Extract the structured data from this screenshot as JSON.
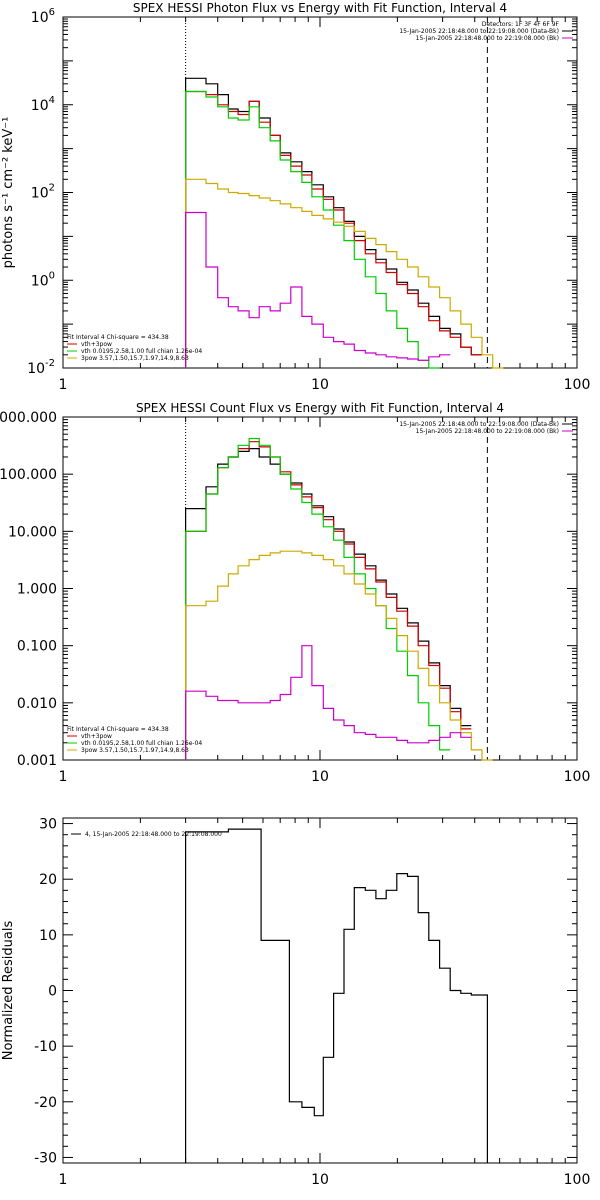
{
  "chart_data": [
    {
      "type": "line",
      "title": "SPEX HESSI Photon Flux vs Energy with Fit Function, Interval 4",
      "xlabel": "",
      "ylabel": "photons s⁻¹ cm⁻² keV⁻¹",
      "xscale": "log",
      "yscale": "log",
      "xlim": [
        1,
        100
      ],
      "ylim": [
        0.01,
        1000000
      ],
      "xticks": [
        "1",
        "10",
        "100"
      ],
      "yticks": [
        {
          "base": "10",
          "exp": "-2",
          "value": 0.01
        },
        {
          "base": "10",
          "exp": "0",
          "value": 1
        },
        {
          "base": "10",
          "exp": "2",
          "value": 100
        },
        {
          "base": "10",
          "exp": "4",
          "value": 10000
        },
        {
          "base": "10",
          "exp": "6",
          "value": 1000000
        }
      ],
      "vlines": [
        {
          "x": 3.0,
          "style": "dotted"
        },
        {
          "x": 44.8,
          "style": "dashed"
        }
      ],
      "legend_top_right": [
        {
          "text": "Detectors: 1F 3F 4F 6F 9F",
          "color": ""
        },
        {
          "text": "15-Jan-2005 22:18:48.000 to 22:19:08.000 (Data-Bk)",
          "color": "#000000"
        },
        {
          "text": "15-Jan-2005 22:18:48.000 to 22:19:08.000 (Bk)",
          "color": "#cc00cc"
        }
      ],
      "legend_bottom_left": [
        {
          "text": "Fit Interval  4    Chi-square = 434.38",
          "color": ""
        },
        {
          "text": "vth+3pow",
          "color": "#cc0000"
        },
        {
          "text": "vth 0.0195,2.58,1.00  full chian 1.26e-04",
          "color": "#00cc00"
        },
        {
          "text": "3pow 3.57,1.50,15.7,1.97,14.9,8.63",
          "color": "#ccaa00"
        }
      ],
      "edges": [
        3,
        3.3,
        3.6,
        4,
        4.4,
        4.8,
        5.3,
        5.8,
        6.4,
        7,
        7.7,
        8.5,
        9.3,
        10.3,
        11.3,
        12.4,
        13.6,
        15,
        16.5,
        18.1,
        19.9,
        21.9,
        24.1,
        26.5,
        29.2,
        32.1,
        35.3,
        38.8,
        42.7,
        47,
        51.7
      ],
      "series": [
        {
          "name": "Data-Bk",
          "color": "#000000",
          "values": [
            40000,
            40000,
            30000,
            17000,
            8000,
            7000,
            12000,
            5000,
            2000,
            800,
            500,
            300,
            150,
            80,
            45,
            22,
            10,
            5,
            3,
            1.8,
            0.9,
            0.6,
            0.3,
            0.15,
            0.08,
            0.06,
            0.03,
            0.02,
            null,
            null
          ]
        },
        {
          "name": "vth+3pow",
          "color": "#cc0000",
          "values": [
            20000,
            20000,
            17000,
            10000,
            7000,
            6000,
            12000,
            4000,
            2000,
            700,
            400,
            250,
            120,
            70,
            40,
            20,
            8,
            4,
            2.5,
            1.5,
            0.8,
            0.5,
            0.25,
            0.12,
            0.07,
            0.05,
            0.03,
            0.02,
            null,
            null
          ]
        },
        {
          "name": "vth",
          "color": "#00cc00",
          "values": [
            20000,
            20000,
            15000,
            9000,
            5000,
            4500,
            9000,
            3000,
            1500,
            550,
            300,
            170,
            80,
            40,
            18,
            8,
            3,
            1.2,
            0.5,
            0.2,
            0.08,
            0.04,
            0.015,
            0.006,
            null,
            null,
            null,
            null,
            null,
            null
          ]
        },
        {
          "name": "3pow",
          "color": "#ccaa00",
          "values": [
            200,
            200,
            160,
            120,
            100,
            95,
            85,
            75,
            65,
            55,
            45,
            37,
            30,
            25,
            21,
            17,
            13,
            9,
            6.5,
            4.5,
            3,
            2,
            1.2,
            0.7,
            0.4,
            0.2,
            0.1,
            0.05,
            0.02,
            0.01
          ]
        },
        {
          "name": "Bk",
          "color": "#cc00cc",
          "values": [
            35,
            35,
            2,
            0.4,
            0.25,
            0.2,
            0.14,
            0.25,
            0.2,
            0.3,
            0.7,
            0.15,
            0.1,
            0.05,
            0.04,
            0.035,
            0.025,
            0.022,
            0.02,
            0.018,
            0.017,
            0.016,
            0.015,
            0.018,
            0.02,
            null,
            null,
            null,
            null,
            null
          ]
        }
      ]
    },
    {
      "type": "line",
      "title": "SPEX HESSI Count Flux vs Energy with Fit Function, Interval 4",
      "xlabel": "",
      "ylabel": "",
      "xscale": "log",
      "yscale": "log",
      "xlim": [
        1,
        100
      ],
      "ylim": [
        0.001,
        1000
      ],
      "xticks": [
        "1",
        "10",
        "100"
      ],
      "yticks": [
        {
          "label": "1000.000",
          "value": 1000
        },
        {
          "label": "100.000",
          "value": 100
        },
        {
          "label": "10.000",
          "value": 10
        },
        {
          "label": "1.000",
          "value": 1
        },
        {
          "label": "0.100",
          "value": 0.1
        },
        {
          "label": "0.010",
          "value": 0.01
        },
        {
          "label": "0.001",
          "value": 0.001
        }
      ],
      "vlines": [
        {
          "x": 3.0,
          "style": "dotted"
        },
        {
          "x": 44.8,
          "style": "dashed"
        }
      ],
      "legend_top_right": [
        {
          "text": "15-Jan-2005 22:18:48.000 to 22:19:08.000 (Data-Bk)",
          "color": "#000000"
        },
        {
          "text": "15-Jan-2005 22:18:48.000 to 22:19:08.000 (Bk)",
          "color": "#cc00cc"
        }
      ],
      "legend_bottom_left": [
        {
          "text": "Fit Interval  4    Chi-square = 434.38",
          "color": ""
        },
        {
          "text": "vth+3pow",
          "color": "#cc0000"
        },
        {
          "text": "vth 0.0195,2.58,1.00  full chian 1.26e-04",
          "color": "#00cc00"
        },
        {
          "text": "3pow 3.57,1.50,15.7,1.97,14.9,8.63",
          "color": "#ccaa00"
        }
      ],
      "edges": [
        3,
        3.3,
        3.6,
        4,
        4.4,
        4.8,
        5.3,
        5.8,
        6.4,
        7,
        7.7,
        8.5,
        9.3,
        10.3,
        11.3,
        12.4,
        13.6,
        15,
        16.5,
        18.1,
        19.9,
        21.9,
        24.1,
        26.5,
        29.2,
        32.1,
        35.3,
        38.8,
        42.7,
        47,
        51.7
      ],
      "series": [
        {
          "name": "Data-Bk",
          "color": "#000000",
          "values": [
            25,
            25,
            60,
            150,
            200,
            250,
            280,
            200,
            150,
            100,
            70,
            45,
            28,
            18,
            11,
            6.5,
            4,
            2.5,
            1.4,
            0.8,
            0.45,
            0.25,
            0.12,
            0.05,
            0.02,
            0.008,
            0.004,
            null,
            null,
            null
          ]
        },
        {
          "name": "vth+3pow",
          "color": "#cc0000",
          "values": [
            10,
            10,
            45,
            130,
            200,
            280,
            370,
            300,
            200,
            110,
            65,
            40,
            26,
            16,
            10,
            6,
            3.5,
            2.2,
            1.3,
            0.7,
            0.4,
            0.22,
            0.1,
            0.045,
            0.018,
            0.007,
            0.0035,
            null,
            null,
            null
          ]
        },
        {
          "name": "vth",
          "color": "#00cc00",
          "values": [
            10,
            10,
            45,
            130,
            200,
            320,
            420,
            320,
            200,
            100,
            55,
            32,
            20,
            12,
            7,
            3.5,
            1.8,
            1,
            0.5,
            0.2,
            0.08,
            0.03,
            0.01,
            0.004,
            0.0015,
            null,
            null,
            null,
            null,
            null
          ]
        },
        {
          "name": "3pow",
          "color": "#ccaa00",
          "values": [
            0.5,
            0.5,
            0.6,
            1.1,
            1.8,
            2.5,
            3.2,
            3.8,
            4.2,
            4.5,
            4.5,
            4.2,
            3.8,
            3.2,
            2.5,
            1.8,
            1.2,
            0.8,
            0.5,
            0.3,
            0.15,
            0.08,
            0.04,
            0.02,
            0.01,
            0.005,
            0.003,
            0.0015,
            0.001,
            null
          ]
        },
        {
          "name": "Bk",
          "color": "#cc00cc",
          "values": [
            0.016,
            0.016,
            0.013,
            0.011,
            0.011,
            0.01,
            0.01,
            0.01,
            0.011,
            0.014,
            0.028,
            0.1,
            0.02,
            0.008,
            0.005,
            0.004,
            0.003,
            0.0028,
            0.0025,
            0.0025,
            0.0022,
            0.002,
            0.002,
            0.0022,
            0.0025,
            0.003,
            0.0025,
            null,
            null,
            null
          ]
        }
      ]
    },
    {
      "type": "line",
      "title": "",
      "xlabel": "",
      "ylabel": "Normalized  Residuals",
      "xscale": "log",
      "yscale": "linear",
      "xlim": [
        1,
        100
      ],
      "ylim": [
        -31,
        31
      ],
      "xticks": [
        "1",
        "10",
        "100"
      ],
      "yticks": [
        {
          "label": "30",
          "value": 30
        },
        {
          "label": "20",
          "value": 20
        },
        {
          "label": "10",
          "value": 10
        },
        {
          "label": "0",
          "value": 0
        },
        {
          "label": "-10",
          "value": -10
        },
        {
          "label": "-20",
          "value": -20
        },
        {
          "label": "-30",
          "value": -30
        }
      ],
      "legend_top_left": [
        {
          "text": "4, 15-Jan-2005 22:18:48.000 to 22:19:08.000",
          "color": "#000000"
        }
      ],
      "edges": [
        3,
        4.0,
        4.4,
        4.9,
        5.9,
        6.8,
        7.6,
        8.5,
        9.5,
        10.3,
        11.3,
        12.4,
        13.6,
        15,
        16.5,
        18.1,
        19.9,
        21.9,
        24.1,
        26.5,
        29.2,
        32.1,
        35.3,
        38.8,
        42.7,
        44.8
      ],
      "series": [
        {
          "name": "",
          "color": "#000000",
          "values": [
            28.5,
            28.5,
            29,
            29,
            9,
            9,
            -20,
            -21,
            -22.5,
            -12,
            -0.5,
            11,
            18.5,
            18,
            16.5,
            18,
            21,
            20.5,
            14,
            9,
            4,
            0,
            -0.5,
            -0.8,
            -0.8
          ]
        }
      ]
    }
  ]
}
